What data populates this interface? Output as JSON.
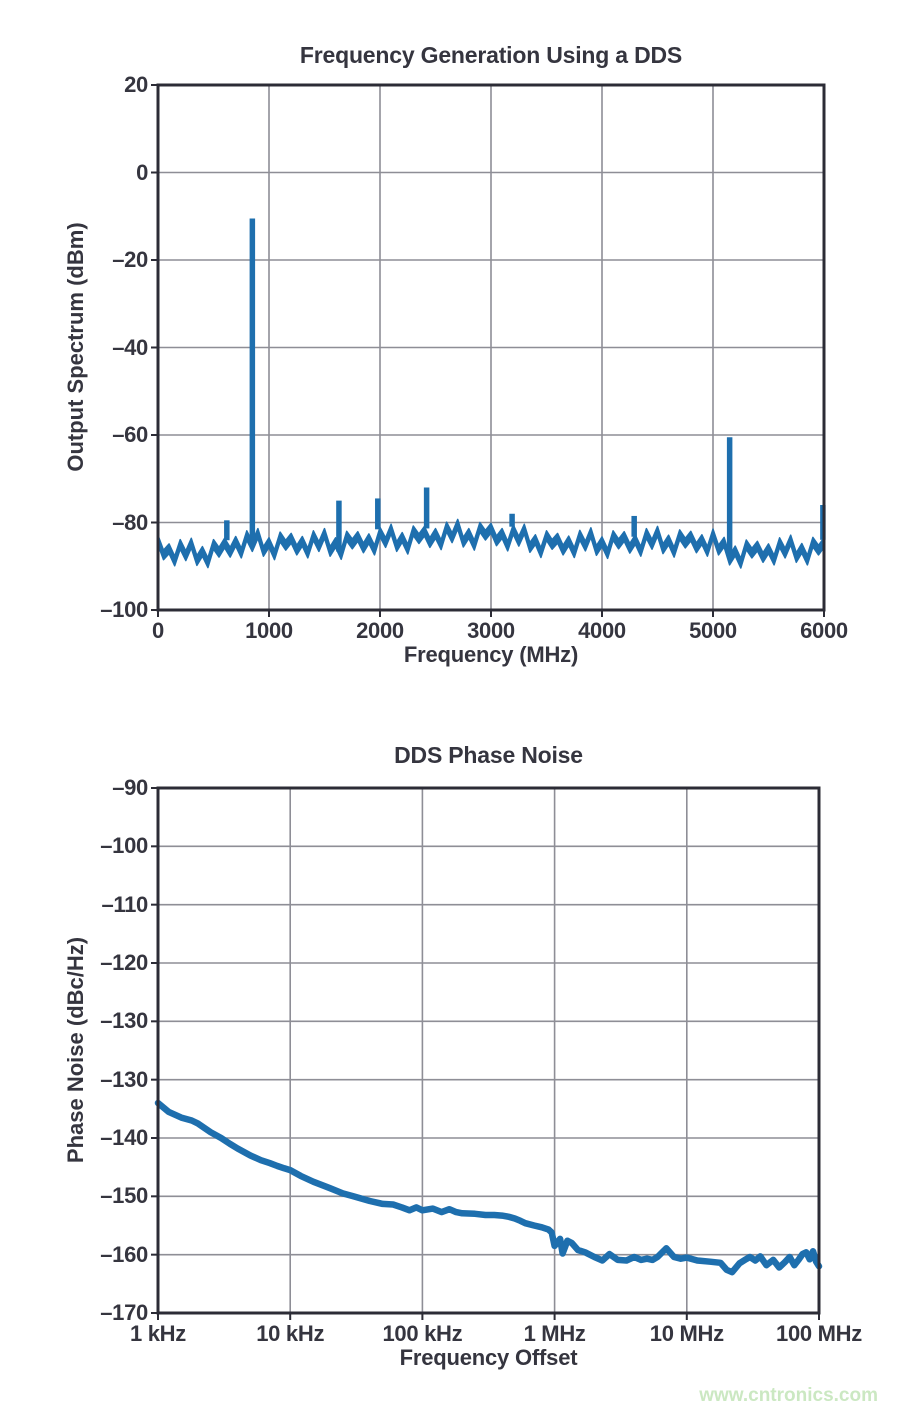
{
  "watermark": {
    "text": "www.cntronics.com",
    "color": "#cbe8c2"
  },
  "style": {
    "background": "#ffffff",
    "line_color": "#1e6fae",
    "grid_color": "#8e8e96",
    "frame_color": "#2c2c36",
    "text_color": "#35353f"
  },
  "chart_data": [
    {
      "type": "line",
      "title": "Frequency Generation Using a DDS",
      "xlabel": "Frequency (MHz)",
      "ylabel": "Output Spectrum (dBm)",
      "x_scale": "linear",
      "xlim": [
        0,
        6000
      ],
      "ylim": [
        -100,
        20
      ],
      "grid": true,
      "x_ticks": [
        {
          "v": 0,
          "label": "0"
        },
        {
          "v": 1000,
          "label": "1000"
        },
        {
          "v": 2000,
          "label": "2000"
        },
        {
          "v": 3000,
          "label": "3000"
        },
        {
          "v": 4000,
          "label": "4000"
        },
        {
          "v": 5000,
          "label": "5000"
        },
        {
          "v": 6000,
          "label": "6000"
        }
      ],
      "y_ticks": [
        {
          "v": 20,
          "label": "20"
        },
        {
          "v": 0,
          "label": "0"
        },
        {
          "v": -20,
          "label": "–20"
        },
        {
          "v": -40,
          "label": "–40"
        },
        {
          "v": -60,
          "label": "–60"
        },
        {
          "v": -80,
          "label": "–80"
        },
        {
          "v": -100,
          "label": "–100"
        }
      ],
      "noise_floor": {
        "start_mhz": 0,
        "step_mhz": 50,
        "values_dbm": [
          -82.9,
          -86.3,
          -84.9,
          -87.7,
          -83.9,
          -86.5,
          -83.6,
          -87.6,
          -85.5,
          -88.1,
          -83.9,
          -85.7,
          -83.6,
          -85.7,
          -83.2,
          -85.9,
          -81.9,
          -84.4,
          -81.4,
          -85.5,
          -83.5,
          -86.3,
          -82.2,
          -84.1,
          -82.5,
          -85.2,
          -83.2,
          -85.9,
          -81.9,
          -84.4,
          -81.4,
          -85.5,
          -83.5,
          -86.2,
          -82.0,
          -83.8,
          -82.1,
          -84.7,
          -82.6,
          -85.2,
          -81.1,
          -83.5,
          -80.4,
          -84.4,
          -82.3,
          -85.0,
          -80.8,
          -82.6,
          -80.9,
          -83.5,
          -81.4,
          -84.0,
          -79.9,
          -82.4,
          -79.3,
          -83.4,
          -81.4,
          -84.1,
          -80.0,
          -81.8,
          -80.2,
          -83.1,
          -81.4,
          -84.3,
          -80.5,
          -83.2,
          -80.4,
          -84.6,
          -82.8,
          -85.8,
          -81.9,
          -83.9,
          -82.5,
          -85.2,
          -83.1,
          -85.8,
          -81.8,
          -84.3,
          -81.2,
          -85.3,
          -83.3,
          -86.0,
          -81.9,
          -83.8,
          -82.1,
          -84.8,
          -82.8,
          -85.5,
          -81.4,
          -83.9,
          -80.9,
          -84.9,
          -82.9,
          -85.7,
          -81.7,
          -83.6,
          -82.0,
          -84.7,
          -82.8,
          -85.5,
          -81.5,
          -85.2,
          -83.4,
          -87.5,
          -85.4,
          -88.2,
          -84.0,
          -85.9,
          -84.3,
          -86.9,
          -84.9,
          -87.5,
          -83.5,
          -85.9,
          -82.9,
          -86.9,
          -84.8,
          -87.5,
          -83.4,
          -85.2,
          -83.5
        ]
      },
      "spurs": [
        {
          "f_mhz": 620,
          "v_dbm": -79.5
        },
        {
          "f_mhz": 850,
          "v_dbm": -10.5
        },
        {
          "f_mhz": 1630,
          "v_dbm": -75.0
        },
        {
          "f_mhz": 1980,
          "v_dbm": -74.5
        },
        {
          "f_mhz": 2420,
          "v_dbm": -72.0
        },
        {
          "f_mhz": 3190,
          "v_dbm": -78.0
        },
        {
          "f_mhz": 4290,
          "v_dbm": -78.5
        },
        {
          "f_mhz": 5150,
          "v_dbm": -60.5
        },
        {
          "f_mhz": 5990,
          "v_dbm": -76.0
        }
      ]
    },
    {
      "type": "line",
      "title": "DDS Phase Noise",
      "xlabel": "Frequency Offset",
      "ylabel": "Phase Noise (dBc/Hz)",
      "x_scale": "log",
      "xlim": [
        1000,
        100000000
      ],
      "grid": true,
      "x_ticks": [
        {
          "v": 1000,
          "label": "1 kHz"
        },
        {
          "v": 10000,
          "label": "10 kHz"
        },
        {
          "v": 100000,
          "label": "100 kHz"
        },
        {
          "v": 1000000,
          "label": "1 MHz"
        },
        {
          "v": 10000000,
          "label": "10 MHz"
        },
        {
          "v": 100000000,
          "label": "100 MHz"
        }
      ],
      "y_tick_labels": [
        "–90",
        "–100",
        "–110",
        "–120",
        "–130",
        "–130",
        "–140",
        "–150",
        "–160",
        "–170"
      ],
      "y_map_note": "axis as printed contains a duplicated –130 label; lower half maps –130..–170 over ticks 5..9",
      "y_map": {
        "anchor_tick_index": 5,
        "anchor_value": -130,
        "db_per_tick": 10
      },
      "points_hz_dbc": [
        [
          1000,
          -134
        ],
        [
          1200,
          -135.5
        ],
        [
          1500,
          -136.5
        ],
        [
          1800,
          -137
        ],
        [
          2000,
          -137.5
        ],
        [
          2500,
          -139
        ],
        [
          3000,
          -140
        ],
        [
          3500,
          -141
        ],
        [
          4000,
          -141.8
        ],
        [
          5000,
          -143
        ],
        [
          6000,
          -143.8
        ],
        [
          7000,
          -144.3
        ],
        [
          8000,
          -144.8
        ],
        [
          9000,
          -145.2
        ],
        [
          10000,
          -145.5
        ],
        [
          12000,
          -146.5
        ],
        [
          15000,
          -147.5
        ],
        [
          18000,
          -148.2
        ],
        [
          20000,
          -148.6
        ],
        [
          25000,
          -149.5
        ],
        [
          30000,
          -150
        ],
        [
          40000,
          -150.8
        ],
        [
          50000,
          -151.3
        ],
        [
          60000,
          -151.4
        ],
        [
          70000,
          -151.9
        ],
        [
          80000,
          -152.4
        ],
        [
          90000,
          -151.9
        ],
        [
          100000,
          -152.4
        ],
        [
          120000,
          -152.1
        ],
        [
          140000,
          -152.7
        ],
        [
          160000,
          -152.2
        ],
        [
          180000,
          -152.7
        ],
        [
          200000,
          -152.9
        ],
        [
          250000,
          -153
        ],
        [
          300000,
          -153.2
        ],
        [
          350000,
          -153.2
        ],
        [
          400000,
          -153.3
        ],
        [
          450000,
          -153.5
        ],
        [
          500000,
          -153.8
        ],
        [
          550000,
          -154.2
        ],
        [
          600000,
          -154.6
        ],
        [
          700000,
          -155
        ],
        [
          800000,
          -155.3
        ],
        [
          900000,
          -155.7
        ],
        [
          950000,
          -156.2
        ],
        [
          1000000,
          -158.5
        ],
        [
          1100000,
          -157.3
        ],
        [
          1150000,
          -159.8
        ],
        [
          1250000,
          -157.6
        ],
        [
          1350000,
          -158
        ],
        [
          1500000,
          -159.2
        ],
        [
          1700000,
          -159.6
        ],
        [
          2000000,
          -160.4
        ],
        [
          2300000,
          -161
        ],
        [
          2600000,
          -159.9
        ],
        [
          3000000,
          -160.9
        ],
        [
          3500000,
          -161
        ],
        [
          4000000,
          -160.4
        ],
        [
          4500000,
          -160.9
        ],
        [
          5000000,
          -160.7
        ],
        [
          5500000,
          -160.9
        ],
        [
          6000000,
          -160.4
        ],
        [
          7000000,
          -158.9
        ],
        [
          8000000,
          -160.4
        ],
        [
          9000000,
          -160.7
        ],
        [
          10000000,
          -160.5
        ],
        [
          12000000,
          -161
        ],
        [
          15000000,
          -161.2
        ],
        [
          18000000,
          -161.4
        ],
        [
          20000000,
          -162.6
        ],
        [
          22000000,
          -163
        ],
        [
          25000000,
          -161.5
        ],
        [
          28000000,
          -160.8
        ],
        [
          30000000,
          -160.4
        ],
        [
          33000000,
          -161
        ],
        [
          36000000,
          -160.3
        ],
        [
          40000000,
          -161.8
        ],
        [
          45000000,
          -160.9
        ],
        [
          50000000,
          -162.2
        ],
        [
          55000000,
          -161.3
        ],
        [
          60000000,
          -160.4
        ],
        [
          65000000,
          -161.8
        ],
        [
          70000000,
          -160.9
        ],
        [
          75000000,
          -159.9
        ],
        [
          80000000,
          -159.6
        ],
        [
          85000000,
          -160.8
        ],
        [
          90000000,
          -159.4
        ],
        [
          95000000,
          -161.2
        ],
        [
          100000000,
          -162
        ]
      ]
    }
  ]
}
